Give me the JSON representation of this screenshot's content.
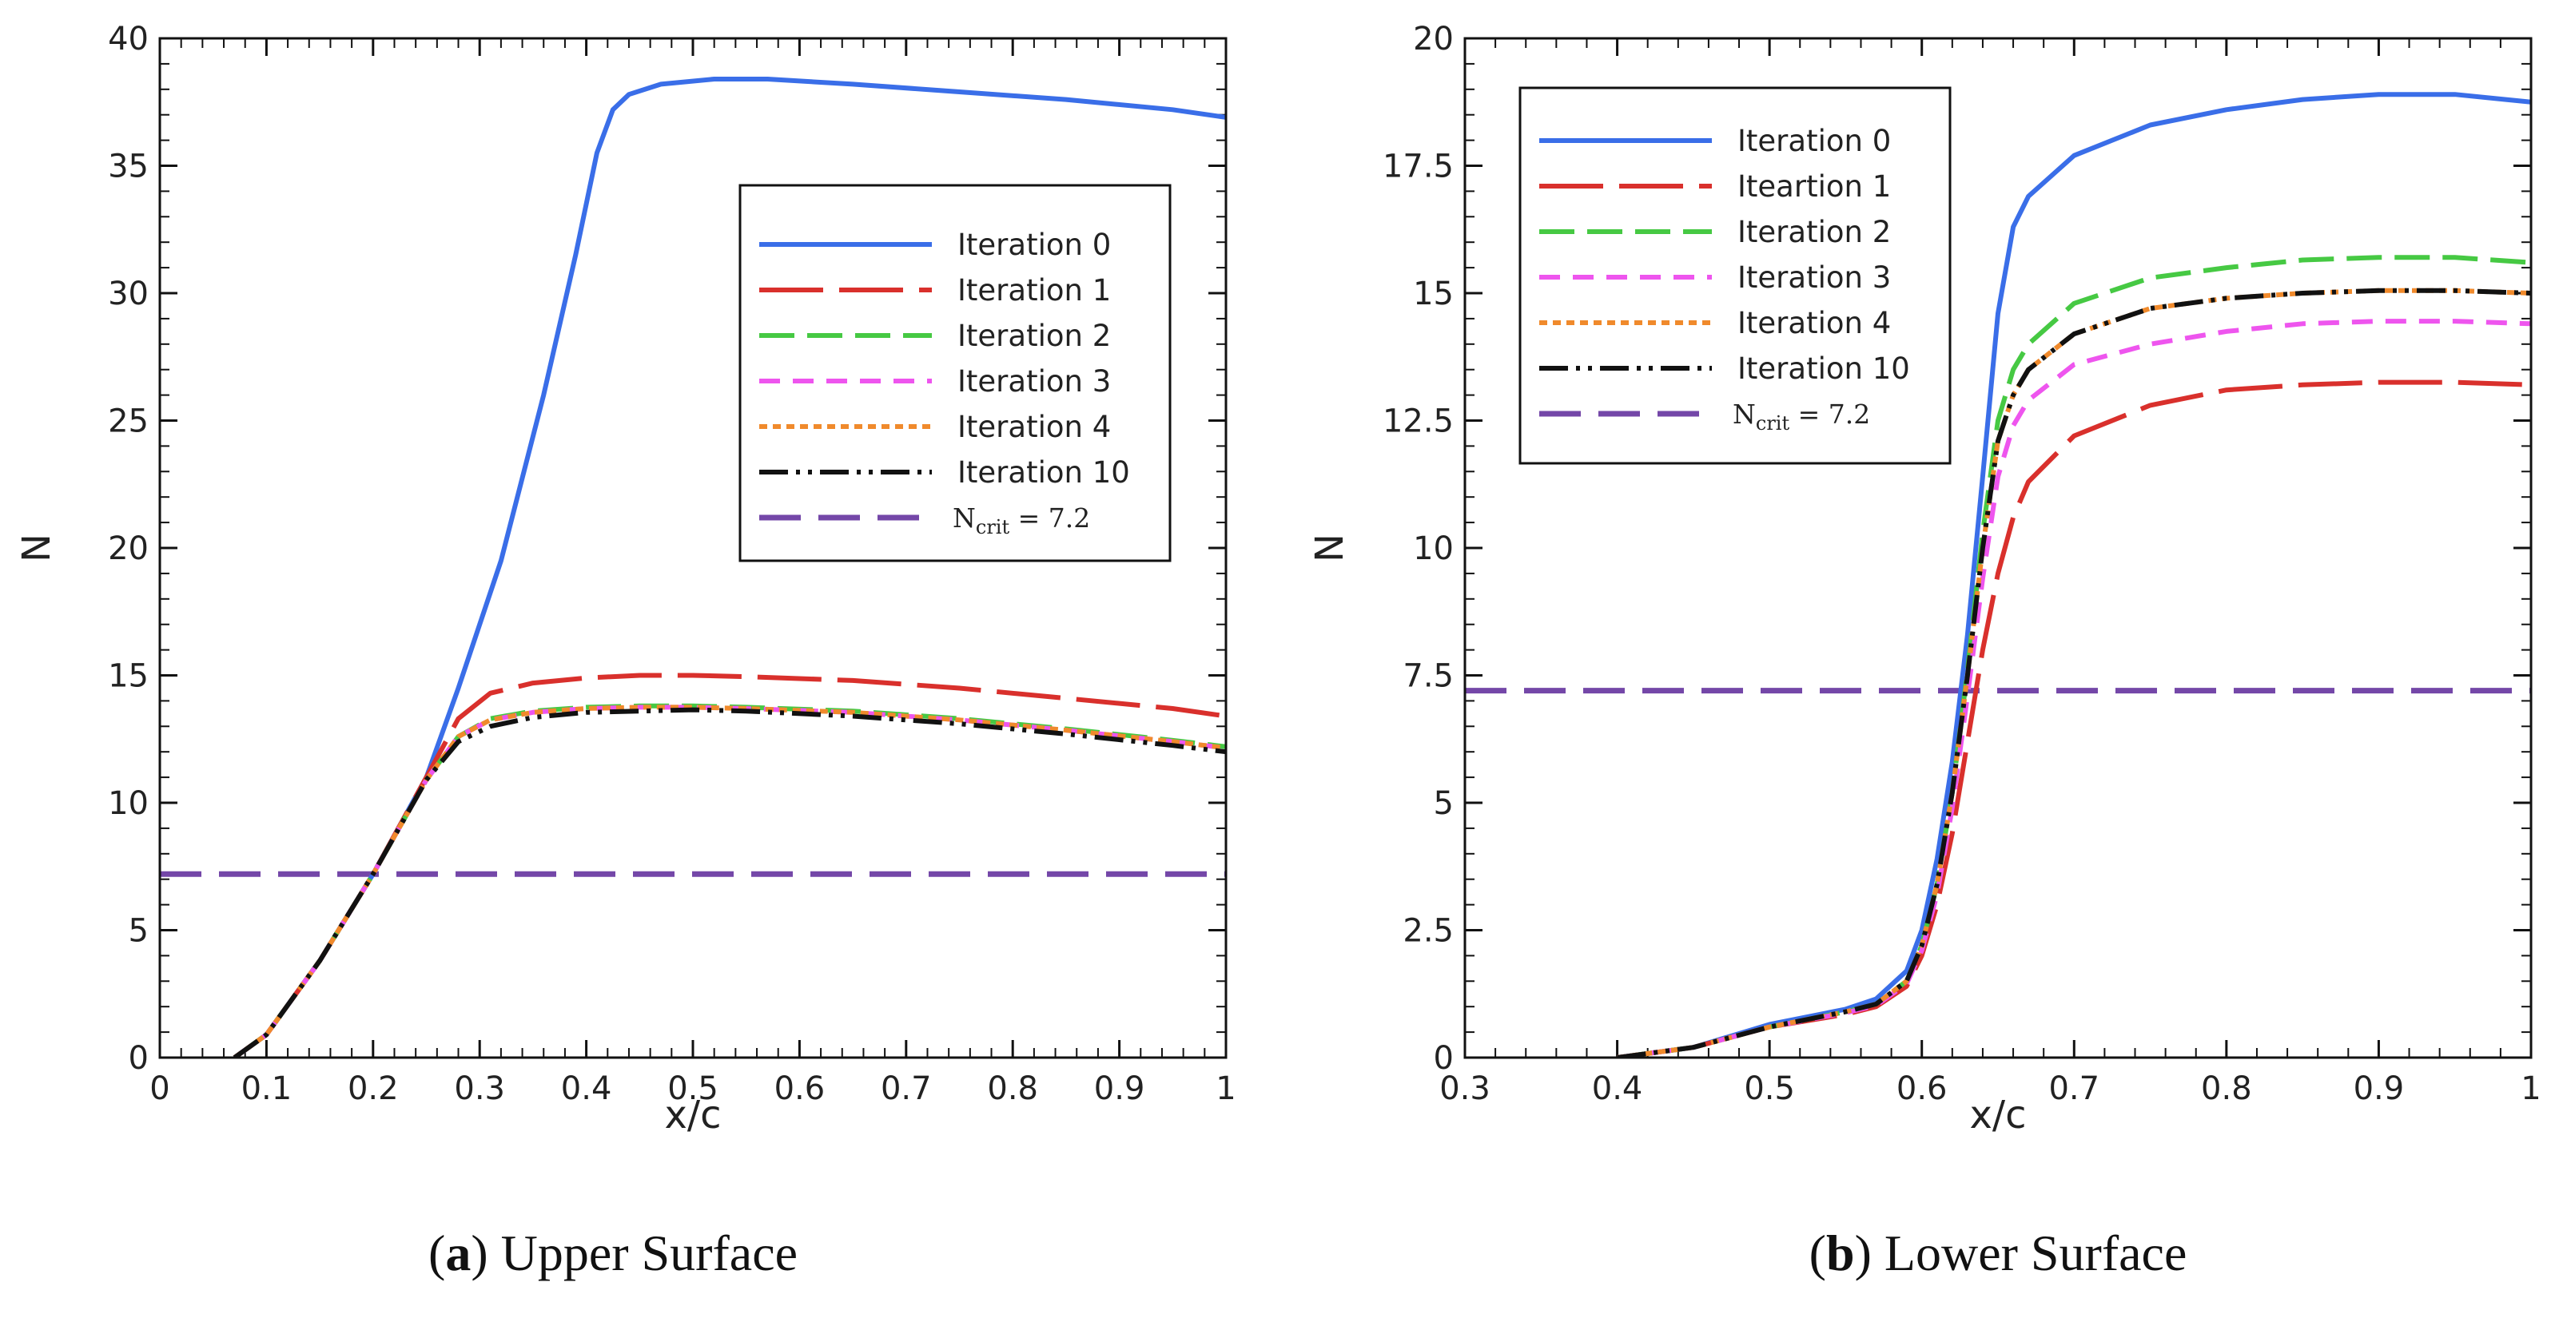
{
  "chart_data": [
    {
      "type": "line",
      "caption_letter": "a",
      "caption_text": "Upper Surface",
      "xlabel": "x/c",
      "ylabel": "N",
      "xlim": [
        0,
        1
      ],
      "ylim": [
        0,
        40
      ],
      "xticks": [
        "0",
        "0.1",
        "0.2",
        "0.3",
        "0.4",
        "0.5",
        "0.6",
        "0.7",
        "0.8",
        "0.9",
        "1"
      ],
      "yticks": [
        "0",
        "5",
        "10",
        "15",
        "20",
        "25",
        "30",
        "35",
        "40"
      ],
      "legend_position": "upper-right",
      "series": [
        {
          "name": "Iteration 0",
          "color": "#3a6ee8",
          "style": "solid",
          "x": [
            0.07,
            0.1,
            0.15,
            0.2,
            0.25,
            0.28,
            0.32,
            0.36,
            0.39,
            0.41,
            0.425,
            0.44,
            0.47,
            0.52,
            0.57,
            0.65,
            0.75,
            0.85,
            0.95,
            1.0
          ],
          "y": [
            0,
            0.9,
            3.8,
            7.2,
            11.0,
            14.5,
            19.5,
            26.0,
            31.5,
            35.5,
            37.2,
            37.8,
            38.2,
            38.4,
            38.4,
            38.2,
            37.9,
            37.6,
            37.2,
            36.9
          ]
        },
        {
          "name": "Iteration 1",
          "color": "#d9302c",
          "style": "longdash",
          "x": [
            0.07,
            0.1,
            0.15,
            0.2,
            0.25,
            0.28,
            0.31,
            0.35,
            0.4,
            0.45,
            0.5,
            0.55,
            0.65,
            0.75,
            0.85,
            0.95,
            1.0
          ],
          "y": [
            0,
            0.9,
            3.8,
            7.2,
            11.0,
            13.3,
            14.3,
            14.7,
            14.9,
            15.0,
            15.0,
            14.95,
            14.8,
            14.5,
            14.1,
            13.7,
            13.4
          ]
        },
        {
          "name": "Iteration 2",
          "color": "#46c943",
          "style": "dash",
          "x": [
            0.07,
            0.1,
            0.15,
            0.2,
            0.25,
            0.28,
            0.31,
            0.35,
            0.4,
            0.45,
            0.5,
            0.55,
            0.65,
            0.75,
            0.85,
            0.95,
            1.0
          ],
          "y": [
            0,
            0.9,
            3.8,
            7.2,
            10.9,
            12.6,
            13.3,
            13.6,
            13.75,
            13.8,
            13.8,
            13.75,
            13.6,
            13.3,
            12.9,
            12.45,
            12.2
          ]
        },
        {
          "name": "Iteration 3",
          "color": "#ee55ee",
          "style": "shortdash",
          "x": [
            0.07,
            0.1,
            0.15,
            0.2,
            0.25,
            0.28,
            0.31,
            0.35,
            0.4,
            0.45,
            0.5,
            0.55,
            0.65,
            0.75,
            0.85,
            0.95,
            1.0
          ],
          "y": [
            0,
            0.9,
            3.8,
            7.2,
            10.9,
            12.6,
            13.25,
            13.55,
            13.7,
            13.75,
            13.75,
            13.7,
            13.55,
            13.25,
            12.85,
            12.4,
            12.15
          ]
        },
        {
          "name": "Iteration 4",
          "color": "#f08a2c",
          "style": "dot",
          "x": [
            0.07,
            0.1,
            0.15,
            0.2,
            0.25,
            0.28,
            0.31,
            0.35,
            0.4,
            0.45,
            0.5,
            0.55,
            0.65,
            0.75,
            0.85,
            0.95,
            1.0
          ],
          "y": [
            0,
            0.9,
            3.8,
            7.2,
            10.9,
            12.6,
            13.25,
            13.55,
            13.7,
            13.75,
            13.75,
            13.7,
            13.55,
            13.25,
            12.85,
            12.4,
            12.15
          ]
        },
        {
          "name": "Iteration 10",
          "color": "#111111",
          "style": "dashdotdot",
          "x": [
            0.07,
            0.1,
            0.15,
            0.2,
            0.25,
            0.28,
            0.31,
            0.35,
            0.4,
            0.45,
            0.5,
            0.55,
            0.65,
            0.75,
            0.85,
            0.95,
            1.0
          ],
          "y": [
            0,
            0.9,
            3.8,
            7.2,
            10.9,
            12.4,
            13.0,
            13.35,
            13.55,
            13.6,
            13.65,
            13.6,
            13.4,
            13.1,
            12.7,
            12.25,
            12.0
          ]
        },
        {
          "name": "N_crit = 7.2",
          "color": "#7447a8",
          "style": "hline",
          "x": [
            0,
            1
          ],
          "y": [
            7.2,
            7.2
          ]
        }
      ]
    },
    {
      "type": "line",
      "caption_letter": "b",
      "caption_text": "Lower Surface",
      "xlabel": "x/c",
      "ylabel": "N",
      "xlim": [
        0.3,
        1
      ],
      "ylim": [
        0,
        20
      ],
      "xticks": [
        "0.3",
        "0.4",
        "0.5",
        "0.6",
        "0.7",
        "0.8",
        "0.9",
        "1"
      ],
      "yticks": [
        "0",
        "2.5",
        "5",
        "7.5",
        "10",
        "12.5",
        "15",
        "17.5",
        "20"
      ],
      "legend_position": "upper-left",
      "series": [
        {
          "name": "Iteration 0",
          "color": "#3a6ee8",
          "style": "solid",
          "x": [
            0.4,
            0.45,
            0.5,
            0.55,
            0.57,
            0.59,
            0.6,
            0.61,
            0.62,
            0.63,
            0.64,
            0.65,
            0.66,
            0.67,
            0.7,
            0.75,
            0.8,
            0.85,
            0.9,
            0.95,
            1.0
          ],
          "y": [
            0,
            0.2,
            0.65,
            0.95,
            1.15,
            1.7,
            2.5,
            3.9,
            5.8,
            8.3,
            11.4,
            14.6,
            16.3,
            16.9,
            17.7,
            18.3,
            18.6,
            18.8,
            18.9,
            18.9,
            18.75
          ]
        },
        {
          "name": "Iteartion 1",
          "color": "#d9302c",
          "style": "longdash",
          "x": [
            0.4,
            0.45,
            0.5,
            0.55,
            0.57,
            0.59,
            0.6,
            0.61,
            0.62,
            0.63,
            0.64,
            0.65,
            0.66,
            0.67,
            0.7,
            0.75,
            0.8,
            0.85,
            0.9,
            0.95,
            1.0
          ],
          "y": [
            0,
            0.2,
            0.6,
            0.85,
            1.0,
            1.4,
            2.0,
            3.0,
            4.4,
            6.2,
            8.0,
            9.5,
            10.6,
            11.3,
            12.2,
            12.8,
            13.1,
            13.2,
            13.25,
            13.25,
            13.2
          ]
        },
        {
          "name": "Iteration 2",
          "color": "#46c943",
          "style": "dash",
          "x": [
            0.4,
            0.45,
            0.5,
            0.55,
            0.57,
            0.59,
            0.6,
            0.61,
            0.62,
            0.63,
            0.64,
            0.65,
            0.66,
            0.67,
            0.7,
            0.75,
            0.8,
            0.85,
            0.9,
            0.95,
            1.0
          ],
          "y": [
            0,
            0.2,
            0.6,
            0.9,
            1.05,
            1.5,
            2.2,
            3.4,
            5.2,
            7.6,
            10.3,
            12.5,
            13.5,
            14.0,
            14.8,
            15.3,
            15.5,
            15.65,
            15.7,
            15.7,
            15.6
          ]
        },
        {
          "name": "Iteration 3",
          "color": "#ee55ee",
          "style": "shortdash",
          "x": [
            0.4,
            0.45,
            0.5,
            0.55,
            0.57,
            0.59,
            0.6,
            0.61,
            0.62,
            0.63,
            0.64,
            0.65,
            0.66,
            0.67,
            0.7,
            0.75,
            0.8,
            0.85,
            0.9,
            0.95,
            1.0
          ],
          "y": [
            0,
            0.2,
            0.6,
            0.88,
            1.02,
            1.45,
            2.1,
            3.2,
            4.9,
            7.1,
            9.4,
            11.4,
            12.4,
            12.9,
            13.6,
            14.0,
            14.25,
            14.4,
            14.45,
            14.45,
            14.4
          ]
        },
        {
          "name": "Iteration 4",
          "color": "#f08a2c",
          "style": "dot",
          "x": [
            0.4,
            0.45,
            0.5,
            0.55,
            0.57,
            0.59,
            0.6,
            0.61,
            0.62,
            0.63,
            0.64,
            0.65,
            0.66,
            0.67,
            0.7,
            0.75,
            0.8,
            0.85,
            0.9,
            0.95,
            1.0
          ],
          "y": [
            0,
            0.2,
            0.6,
            0.9,
            1.05,
            1.5,
            2.2,
            3.4,
            5.2,
            7.5,
            10.0,
            12.1,
            13.0,
            13.5,
            14.2,
            14.7,
            14.9,
            15.0,
            15.05,
            15.05,
            15.0
          ]
        },
        {
          "name": "Iteration 10",
          "color": "#111111",
          "style": "dashdotdot",
          "x": [
            0.4,
            0.45,
            0.5,
            0.55,
            0.57,
            0.59,
            0.6,
            0.61,
            0.62,
            0.63,
            0.64,
            0.65,
            0.66,
            0.67,
            0.7,
            0.75,
            0.8,
            0.85,
            0.9,
            0.95,
            1.0
          ],
          "y": [
            0,
            0.2,
            0.6,
            0.9,
            1.05,
            1.5,
            2.2,
            3.4,
            5.2,
            7.5,
            10.0,
            12.1,
            13.0,
            13.5,
            14.2,
            14.7,
            14.9,
            15.0,
            15.05,
            15.05,
            15.0
          ]
        },
        {
          "name": "N_crit = 7.2",
          "color": "#7447a8",
          "style": "hline",
          "x": [
            0.3,
            1
          ],
          "y": [
            7.2,
            7.2
          ]
        }
      ]
    }
  ]
}
